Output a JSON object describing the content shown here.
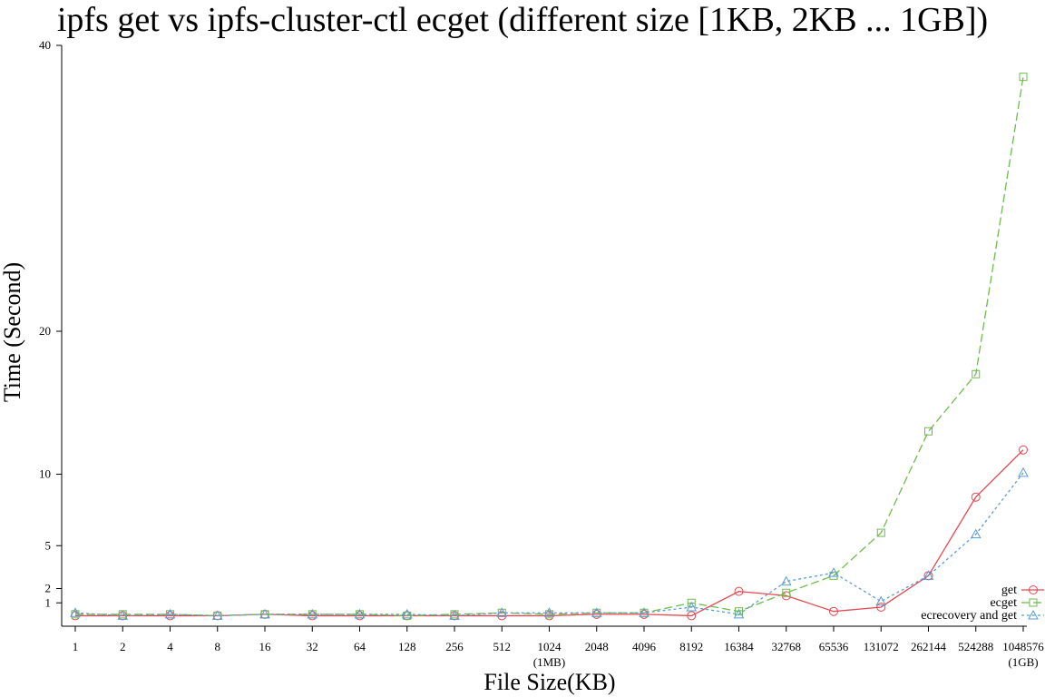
{
  "chart_data": {
    "type": "line",
    "title": "ipfs get vs ipfs-cluster-ctl ecget (different size [1KB, 2KB ... 1GB])",
    "xlabel": "File Size(KB)",
    "ylabel": "Time (Second)",
    "categories": [
      "1",
      "2",
      "4",
      "8",
      "16",
      "32",
      "64",
      "128",
      "256",
      "512",
      "1024",
      "2048",
      "4096",
      "8192",
      "16384",
      "32768",
      "65536",
      "131072",
      "262144",
      "524288",
      "1048576"
    ],
    "category_sublabels": {
      "1024": "(1MB)",
      "1048576": "(1GB)"
    },
    "y_ticks": [
      1,
      2,
      5,
      10,
      20,
      40
    ],
    "ylim": [
      0,
      40
    ],
    "grid": false,
    "legend_position": "bottom-right",
    "colors": {
      "get": "#e8474f",
      "ecget": "#6fbb4e",
      "ecrecovery": "#5b9bd5"
    },
    "series": [
      {
        "name": "get",
        "style": "solid",
        "marker": "circle",
        "color_key": "get",
        "values": [
          0.1,
          0.1,
          0.1,
          0.1,
          0.2,
          0.1,
          0.1,
          0.1,
          0.1,
          0.1,
          0.1,
          0.2,
          0.2,
          0.1,
          1.8,
          1.5,
          0.4,
          0.7,
          2.9,
          8.4,
          11.7
        ]
      },
      {
        "name": "ecget",
        "style": "dashed",
        "marker": "square",
        "color_key": "ecget",
        "values": [
          0.2,
          0.2,
          0.2,
          0.1,
          0.2,
          0.2,
          0.2,
          0.1,
          0.2,
          0.3,
          0.2,
          0.3,
          0.3,
          1.0,
          0.4,
          1.7,
          2.9,
          5.9,
          13.0,
          17.0,
          37.8
        ]
      },
      {
        "name": "ecrecovery and get",
        "style": "dotted",
        "marker": "triangle",
        "color_key": "ecrecovery",
        "values": [
          0.3,
          0.1,
          0.2,
          0.1,
          0.2,
          0.2,
          0.2,
          0.2,
          0.1,
          0.3,
          0.3,
          0.3,
          0.3,
          0.7,
          0.2,
          2.5,
          3.1,
          1.1,
          2.9,
          5.8,
          10.1
        ]
      }
    ]
  }
}
